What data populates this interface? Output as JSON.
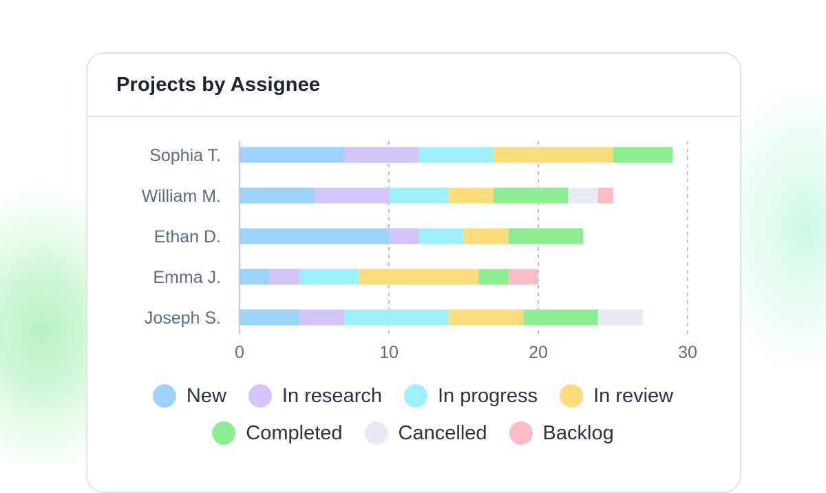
{
  "card": {
    "title": "Projects by Assignee"
  },
  "chart_data": {
    "type": "bar",
    "orientation": "horizontal",
    "stacked": true,
    "title": "Projects by Assignee",
    "categories": [
      "Sophia T.",
      "William M.",
      "Ethan D.",
      "Emma J.",
      "Joseph S."
    ],
    "series": [
      {
        "name": "New",
        "color": "#9dd3fb",
        "values": [
          7,
          5,
          10,
          2,
          4
        ]
      },
      {
        "name": "In research",
        "color": "#d3c5fb",
        "values": [
          5,
          5,
          2,
          2,
          3
        ]
      },
      {
        "name": "In progress",
        "color": "#9ef0fa",
        "values": [
          5,
          4,
          3,
          4,
          7
        ]
      },
      {
        "name": "In review",
        "color": "#fddc7c",
        "values": [
          8,
          3,
          3,
          8,
          5
        ]
      },
      {
        "name": "Completed",
        "color": "#8ded93",
        "values": [
          4,
          5,
          5,
          2,
          5
        ]
      },
      {
        "name": "Cancelled",
        "color": "#e8ebf2",
        "values": [
          0,
          2,
          0,
          0,
          3
        ]
      },
      {
        "name": "Backlog",
        "color": "#fcbcc6",
        "values": [
          0,
          1,
          0,
          2,
          0
        ]
      }
    ],
    "xlim": [
      0,
      30
    ],
    "xticks": [
      0,
      10,
      20,
      30
    ],
    "grid": "vertical dashed",
    "legend_position": "bottom"
  }
}
